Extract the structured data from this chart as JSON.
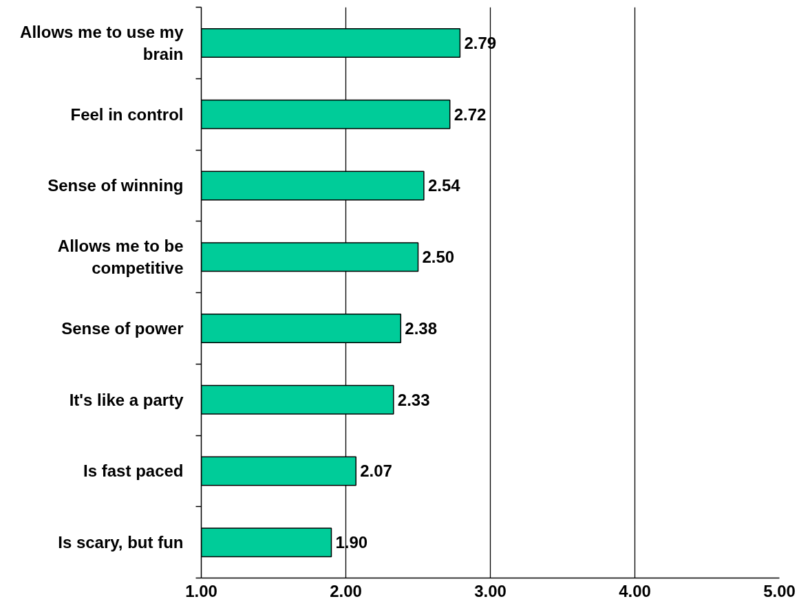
{
  "chart_data": {
    "type": "bar",
    "orientation": "horizontal",
    "categories": [
      "Allows me to use my brain",
      "Feel in control",
      "Sense of winning",
      "Allows me to be competitive",
      "Sense of power",
      "It's like a party",
      "Is fast paced",
      "Is scary, but fun"
    ],
    "values": [
      2.79,
      2.72,
      2.54,
      2.5,
      2.38,
      2.33,
      2.07,
      1.9
    ],
    "value_labels": [
      "2.79",
      "2.72",
      "2.54",
      "2.50",
      "2.38",
      "2.33",
      "2.07",
      "1.90"
    ],
    "color": "#00cc99",
    "xlim": [
      1,
      5
    ],
    "xticks": [
      {
        "value": 1,
        "label": "1.00"
      },
      {
        "value": 2,
        "label": "2.00"
      },
      {
        "value": 3,
        "label": "3.00"
      },
      {
        "value": 4,
        "label": "4.00"
      },
      {
        "value": 5,
        "label": "5.00"
      }
    ],
    "grid": "x"
  }
}
